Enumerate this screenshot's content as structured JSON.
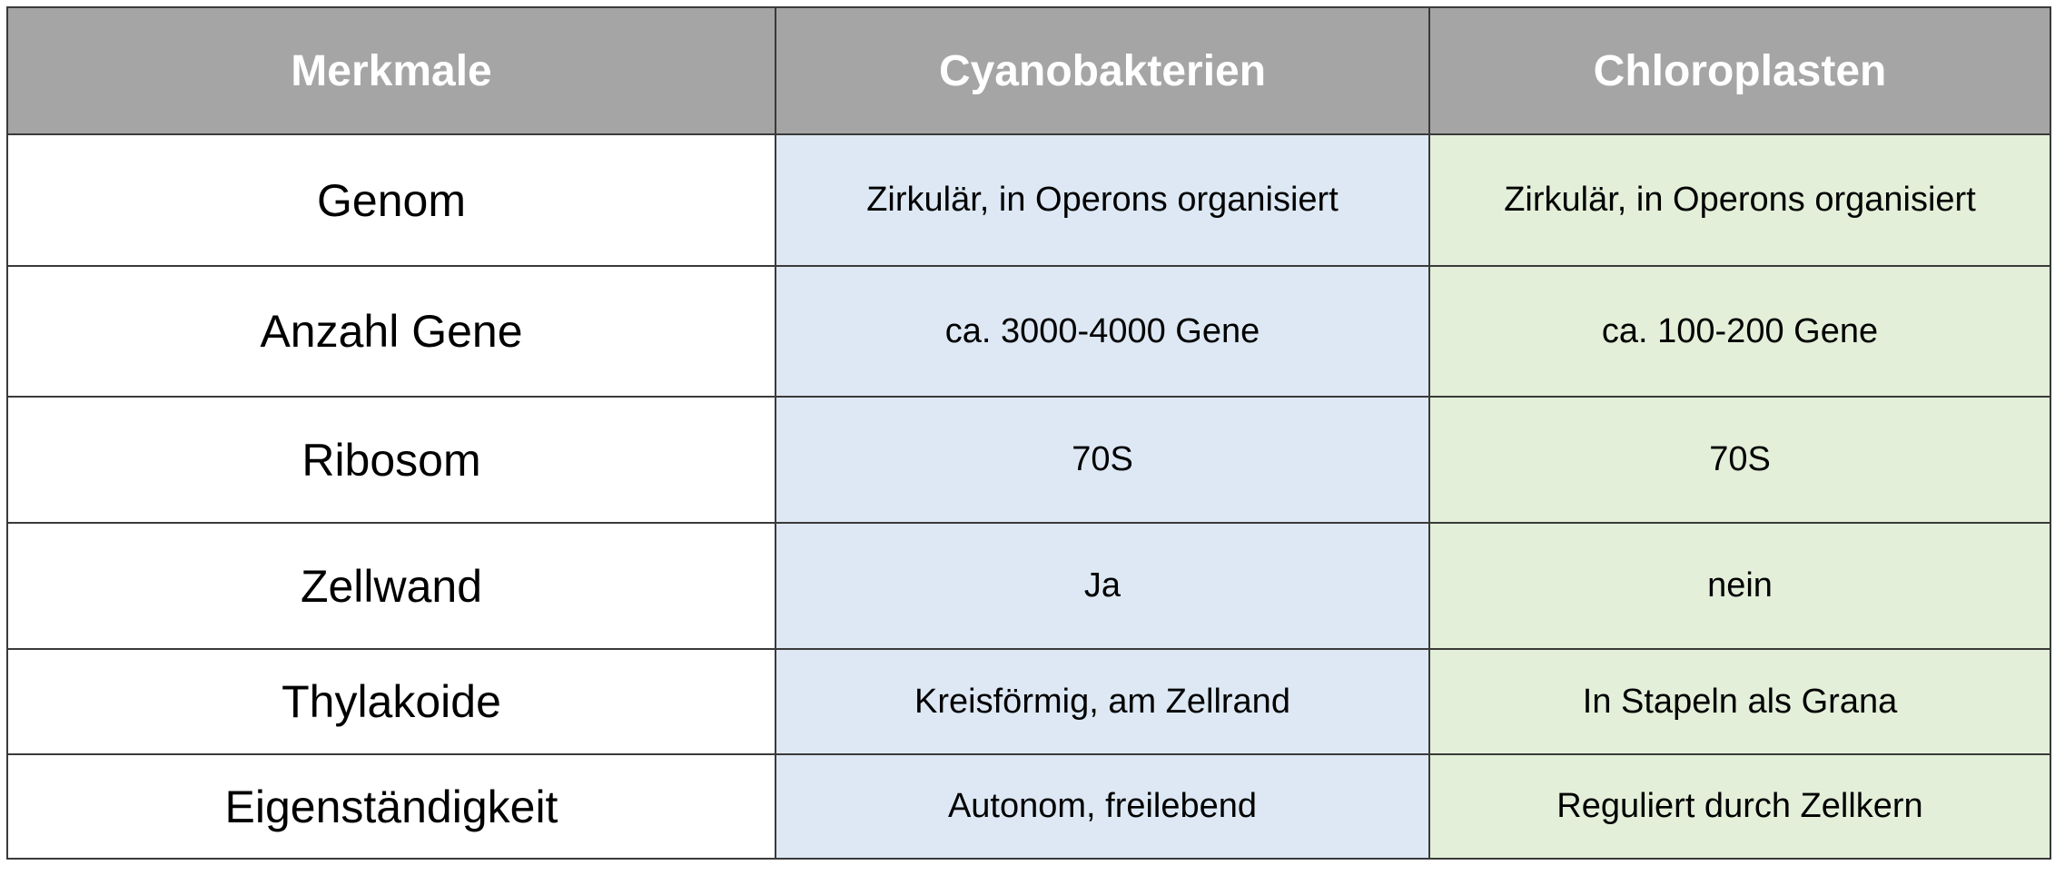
{
  "table": {
    "headers": [
      "Merkmale",
      "Cyanobakterien",
      "Chloroplasten"
    ],
    "rows": [
      {
        "feature": "Genom",
        "cyanobakterien": "Zirkulär, in Operons organisiert",
        "chloroplasten": "Zirkulär, in Operons organisiert"
      },
      {
        "feature": "Anzahl Gene",
        "cyanobakterien": "ca. 3000-4000 Gene",
        "chloroplasten": "ca. 100-200 Gene"
      },
      {
        "feature": "Ribosom",
        "cyanobakterien": "70S",
        "chloroplasten": "70S"
      },
      {
        "feature": "Zellwand",
        "cyanobakterien": "Ja",
        "chloroplasten": "nein"
      },
      {
        "feature": "Thylakoide",
        "cyanobakterien": "Kreisförmig, am Zellrand",
        "chloroplasten": "In Stapeln als Grana"
      },
      {
        "feature": "Eigenständigkeit",
        "cyanobakterien": "Autonom, freilebend",
        "chloroplasten": "Reguliert durch Zellkern"
      }
    ]
  },
  "colors": {
    "header_bg": "#a5a5a5",
    "header_text": "#ffffff",
    "cyanobakterien_bg": "#dde8f4",
    "chloroplasten_bg": "#e3efd9",
    "border": "#3a3a3a"
  }
}
